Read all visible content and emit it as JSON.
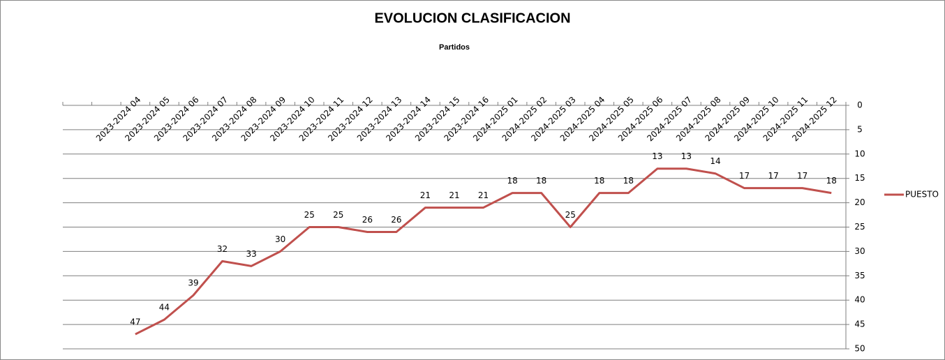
{
  "chart_data": {
    "type": "line",
    "title": "EVOLUCION CLASIFICACION",
    "x_label": "Partidos",
    "categories": [
      null,
      null,
      "2023-2024 04",
      "2023-2024 05",
      "2023-2024 06",
      "2023-2024 07",
      "2023-2024 08",
      "2023-2024 09",
      "2023-2024 10",
      "2023-2024 11",
      "2023-2024 12",
      "2023-2024 13",
      "2023-2024 14",
      "2023-2024 15",
      "2023-2024 16",
      "2024-2025 01",
      "2024-2025 02",
      "2024-2025 03",
      "2024-2025 04",
      "2024-2025 05",
      "2024-2025 06",
      "2024-2025 07",
      "2024-2025 08",
      "2024-2025 09",
      "2024-2025 10",
      "2024-2025 11",
      "2024-2025 12"
    ],
    "series": [
      {
        "name": "PUESTO",
        "color": "#c0504d",
        "values": [
          null,
          null,
          47,
          44,
          39,
          32,
          33,
          30,
          25,
          25,
          26,
          26,
          21,
          21,
          21,
          18,
          18,
          25,
          18,
          18,
          13,
          13,
          14,
          17,
          17,
          17,
          18
        ]
      }
    ],
    "ylim": [
      0,
      50
    ],
    "yticks": [
      0,
      5,
      10,
      15,
      20,
      25,
      30,
      35,
      40,
      45,
      50
    ],
    "y_reversed": true,
    "y_axis_side": "right",
    "x_axis_side": "top",
    "grid": true,
    "legend": "right"
  }
}
